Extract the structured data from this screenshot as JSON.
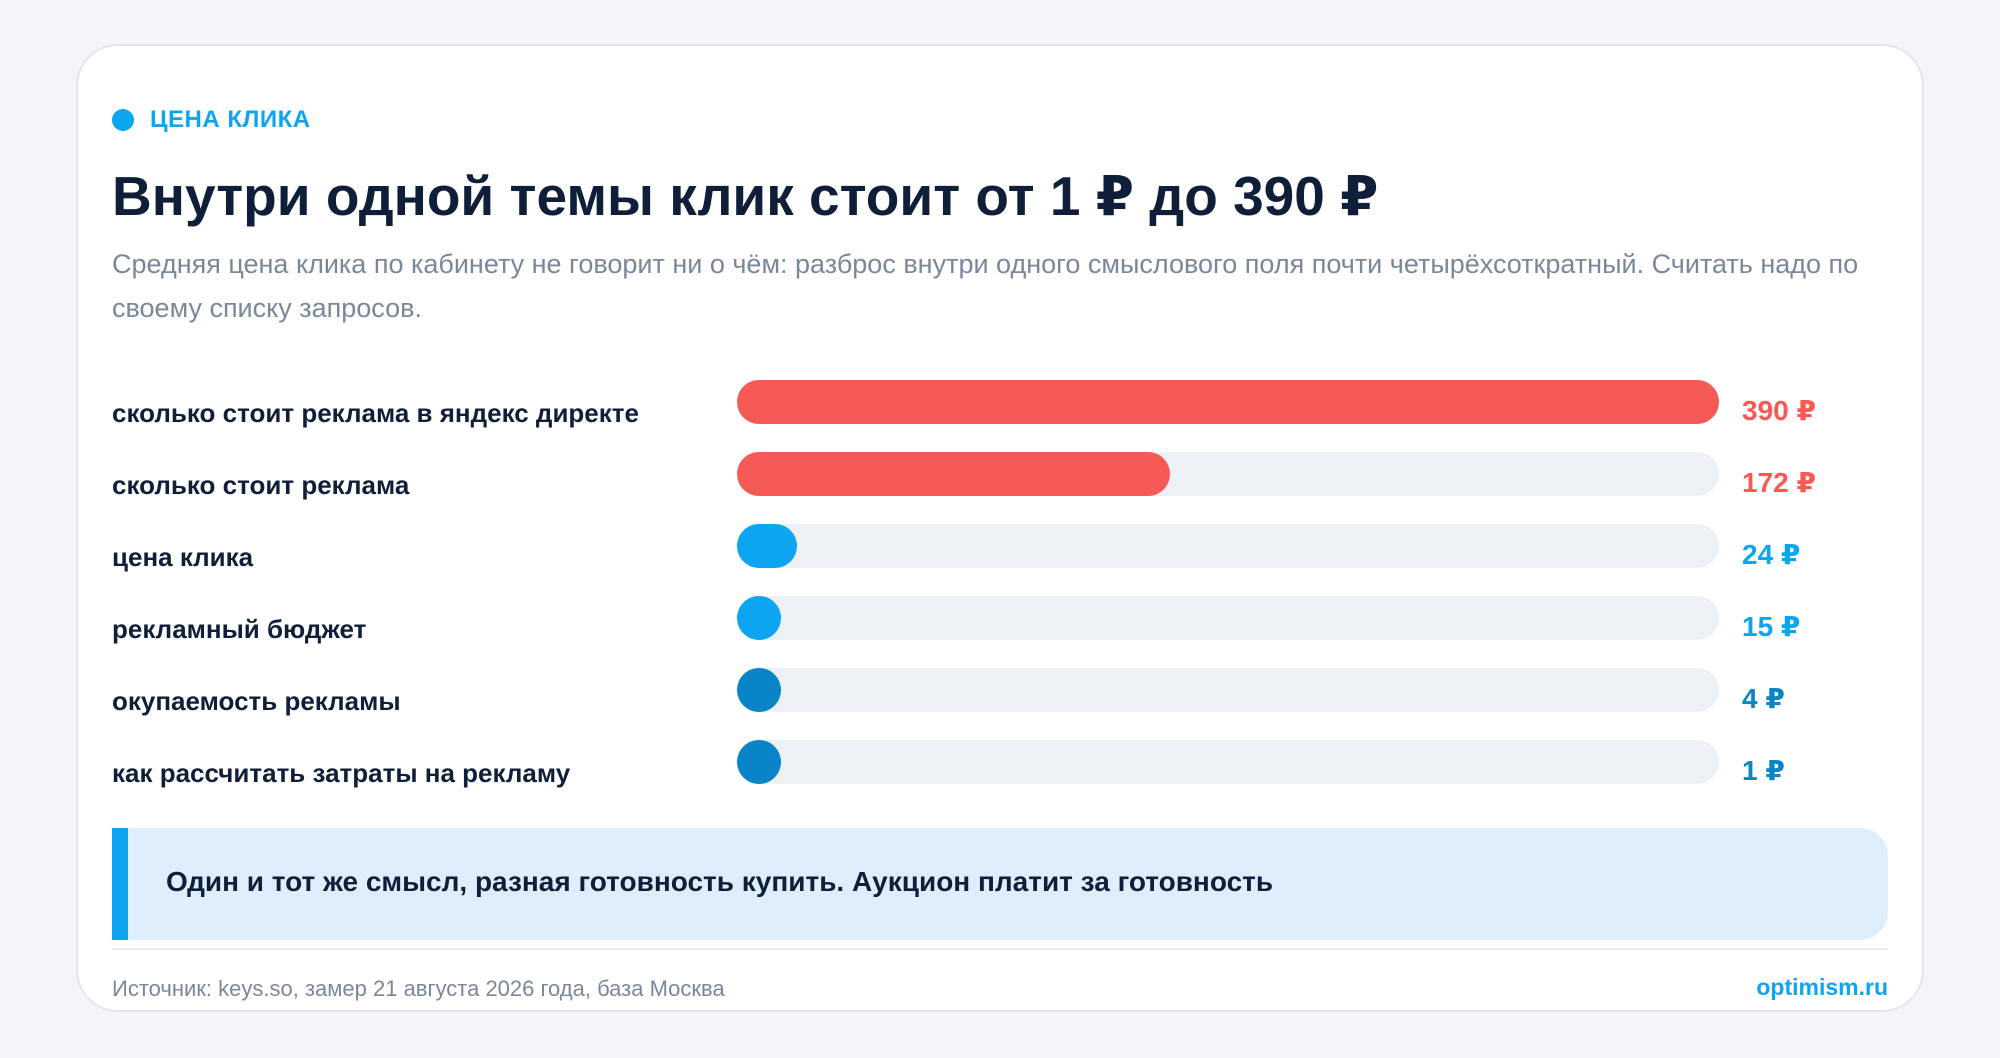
{
  "eyebrow": {
    "label": "ЦЕНА КЛИКА",
    "color": "#0ea5f0"
  },
  "title": "Внутри одной темы клик стоит от 1 ₽ до 390 ₽",
  "subtitle": "Средняя цена клика по кабинету не говорит ни о чём: разброс внутри одного смыслового поля почти четырёхсоткратный. Считать надо по своему списку запросов.",
  "chart_data": {
    "type": "bar",
    "orientation": "horizontal",
    "categories": [
      "сколько стоит реклама в яндекс директе",
      "сколько стоит реклама",
      "цена клика",
      "рекламный бюджет",
      "окупаемость рекламы",
      "как рассчитать затраты на рекламу"
    ],
    "values": [
      390,
      172,
      24,
      15,
      4,
      1
    ],
    "value_labels": [
      "390 ₽",
      "172 ₽",
      "24 ₽",
      "15 ₽",
      "4 ₽",
      "1 ₽"
    ],
    "colors": [
      "#f65a57",
      "#f65a57",
      "#0ea5f0",
      "#0ea5f0",
      "#0a84c8",
      "#0a84c8"
    ],
    "xlim": [
      0,
      390
    ],
    "grid": false,
    "legend": "none",
    "unit": "₽"
  },
  "callout": {
    "text": "Один и тот же смысл, разная готовность купить. Аукцион платит за готовность"
  },
  "footer": {
    "source": "Источник: keys.so, замер 21 августа 2026 года, база Москва",
    "brand": "optimism.ru"
  }
}
